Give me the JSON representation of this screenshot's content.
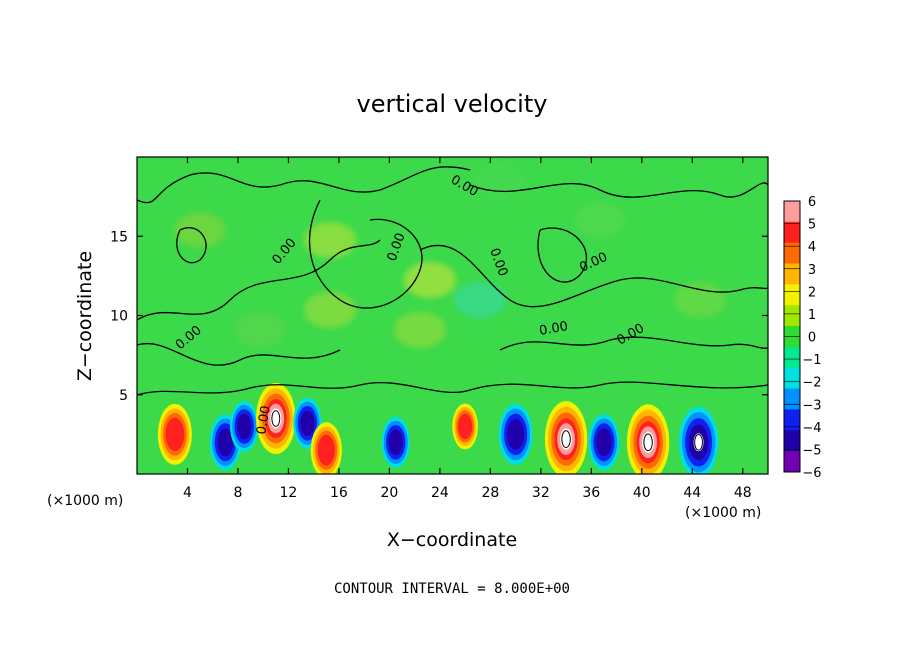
{
  "chart_data": {
    "type": "heatmap",
    "title": "vertical velocity",
    "xlabel": "X−coordinate",
    "ylabel": "Z−coordinate",
    "x_unit": "(×1000 m)",
    "xlim": [
      0,
      50
    ],
    "ylim": [
      0,
      20
    ],
    "x_ticks": [
      4,
      8,
      12,
      16,
      20,
      24,
      28,
      32,
      36,
      40,
      44,
      48
    ],
    "x_tick_labels": [
      "4",
      "8",
      "12",
      "16",
      "20",
      "24",
      "28",
      "32",
      "36",
      "40",
      "44",
      "48"
    ],
    "y_ticks": [
      5,
      10,
      15
    ],
    "y_tick_labels": [
      "5",
      "10",
      "15"
    ],
    "colorbar": {
      "range": [
        -6,
        6
      ],
      "labels": [
        "6",
        "5",
        "4",
        "3",
        "2",
        "1",
        "0",
        "−1",
        "−2",
        "−3",
        "−4",
        "−5",
        "−6"
      ],
      "colors": [
        "#ff9c9c",
        "#ff2020",
        "#ff6a00",
        "#ffb400",
        "#f2f200",
        "#a0e800",
        "#30dc30",
        "#00e890",
        "#00e0e0",
        "#0090ff",
        "#1020f0",
        "#2000a8",
        "#7000b0"
      ]
    },
    "contour_interval": "CONTOUR INTERVAL = 8.000E+00",
    "contour_label": "0.00",
    "cells": [
      {
        "x": 3,
        "z": 2.5,
        "w": 5
      },
      {
        "x": 7,
        "z": 2.0,
        "w": -4
      },
      {
        "x": 8.5,
        "z": 3.0,
        "w": -3
      },
      {
        "x": 11,
        "z": 3.5,
        "w": 7
      },
      {
        "x": 13.5,
        "z": 3.2,
        "w": -3
      },
      {
        "x": 15,
        "z": 1.5,
        "w": 4
      },
      {
        "x": 20.5,
        "z": 2.0,
        "w": -3
      },
      {
        "x": 26,
        "z": 3.0,
        "w": 2
      },
      {
        "x": 30,
        "z": 2.5,
        "w": -5
      },
      {
        "x": 34,
        "z": 2.2,
        "w": 8
      },
      {
        "x": 37,
        "z": 2.0,
        "w": -4
      },
      {
        "x": 40.5,
        "z": 2.0,
        "w": 8
      },
      {
        "x": 44.5,
        "z": 2.0,
        "w": -7
      }
    ]
  }
}
